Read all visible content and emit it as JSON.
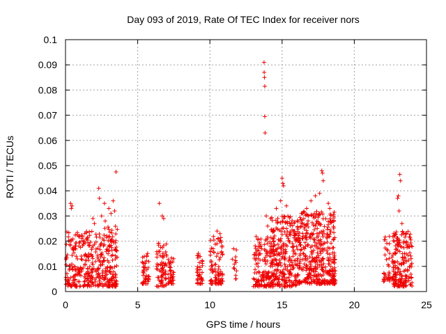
{
  "chart_data": {
    "type": "scatter",
    "title": "Day 093 of 2019, Rate Of TEC Index for receiver nors",
    "xlabel": "GPS time / hours",
    "ylabel": "ROTI / TECUs",
    "xlim": [
      0,
      25
    ],
    "ylim": [
      0,
      0.1
    ],
    "grid": true,
    "marker": "plus",
    "color": "#ee0000",
    "xticks": [
      "0",
      "5",
      "10",
      "15",
      "20",
      "25"
    ],
    "yticks": [
      "0",
      "0.01",
      "0.02",
      "0.03",
      "0.04",
      "0.05",
      "0.06",
      "0.07",
      "0.08",
      "0.09",
      "0.1"
    ],
    "clusters": [
      {
        "x": [
          0.0,
          2.3
        ],
        "ymin": 0.002,
        "ymax": 0.024,
        "n": 230
      },
      {
        "x": [
          2.3,
          3.6
        ],
        "ymin": 0.002,
        "ymax": 0.026,
        "n": 170
      },
      {
        "x": [
          5.3,
          5.8
        ],
        "ymin": 0.003,
        "ymax": 0.016,
        "n": 45
      },
      {
        "x": [
          6.3,
          7.0
        ],
        "ymin": 0.002,
        "ymax": 0.02,
        "n": 70
      },
      {
        "x": [
          7.1,
          7.5
        ],
        "ymin": 0.003,
        "ymax": 0.014,
        "n": 40
      },
      {
        "x": [
          9.1,
          9.5
        ],
        "ymin": 0.003,
        "ymax": 0.016,
        "n": 40
      },
      {
        "x": [
          10.0,
          10.9
        ],
        "ymin": 0.003,
        "ymax": 0.022,
        "n": 90
      },
      {
        "x": [
          11.5,
          11.9
        ],
        "ymin": 0.005,
        "ymax": 0.019,
        "n": 14
      },
      {
        "x": [
          13.0,
          14.2
        ],
        "ymin": 0.002,
        "ymax": 0.022,
        "n": 130
      },
      {
        "x": [
          14.2,
          16.0
        ],
        "ymin": 0.002,
        "ymax": 0.03,
        "n": 280
      },
      {
        "x": [
          16.0,
          18.7
        ],
        "ymin": 0.003,
        "ymax": 0.032,
        "n": 420
      },
      {
        "x": [
          22.0,
          22.5
        ],
        "ymin": 0.004,
        "ymax": 0.022,
        "n": 35
      },
      {
        "x": [
          22.6,
          24.0
        ],
        "ymin": 0.002,
        "ymax": 0.024,
        "n": 190
      }
    ],
    "outliers": {
      "x": [
        0.35,
        0.4,
        0.45,
        1.9,
        2.0,
        2.3,
        2.35,
        2.5,
        2.7,
        2.75,
        3.0,
        3.15,
        3.3,
        3.4,
        3.5,
        6.5,
        6.7,
        6.8,
        10.5,
        10.7,
        13.75,
        13.76,
        13.78,
        13.8,
        13.8,
        13.82,
        13.9,
        14.0,
        14.2,
        14.6,
        14.7,
        14.9,
        15.0,
        15.05,
        15.1,
        15.3,
        16.4,
        16.7,
        17.0,
        17.3,
        17.6,
        17.75,
        17.8,
        17.85,
        18.2,
        18.3,
        23.0,
        23.05,
        23.1,
        23.15,
        23.2,
        23.3
      ],
      "y": [
        0.035,
        0.033,
        0.034,
        0.029,
        0.027,
        0.041,
        0.037,
        0.03,
        0.035,
        0.028,
        0.033,
        0.031,
        0.036,
        0.032,
        0.0475,
        0.035,
        0.03,
        0.029,
        0.024,
        0.023,
        0.091,
        0.087,
        0.085,
        0.0815,
        0.0695,
        0.063,
        0.03,
        0.026,
        0.029,
        0.033,
        0.029,
        0.036,
        0.045,
        0.043,
        0.042,
        0.034,
        0.031,
        0.033,
        0.036,
        0.038,
        0.039,
        0.048,
        0.047,
        0.044,
        0.035,
        0.033,
        0.037,
        0.038,
        0.032,
        0.0465,
        0.044,
        0.027
      ]
    }
  }
}
